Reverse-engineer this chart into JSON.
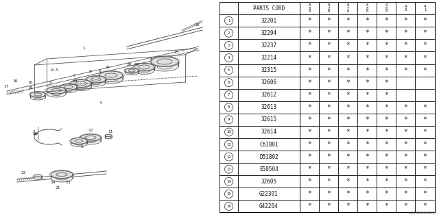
{
  "title": "A114B00095",
  "parts_cord_header": "PARTS CORD",
  "col_headers": [
    "8\n0\n0",
    "8\n2\n0",
    "8\n7\n0",
    "8\n8\n0",
    "9\n0\n0",
    "9\n0",
    "9\n1"
  ],
  "rows": [
    {
      "num": 1,
      "code": "32201",
      "marks": [
        true,
        true,
        true,
        true,
        true,
        true,
        true
      ]
    },
    {
      "num": 2,
      "code": "32294",
      "marks": [
        true,
        true,
        true,
        true,
        true,
        true,
        true
      ]
    },
    {
      "num": 3,
      "code": "32237",
      "marks": [
        true,
        true,
        true,
        true,
        true,
        true,
        true
      ]
    },
    {
      "num": 4,
      "code": "32214",
      "marks": [
        true,
        true,
        true,
        true,
        true,
        true,
        true
      ]
    },
    {
      "num": 5,
      "code": "32315",
      "marks": [
        true,
        true,
        true,
        true,
        true,
        true,
        true
      ]
    },
    {
      "num": 6,
      "code": "32606",
      "marks": [
        true,
        true,
        true,
        true,
        true,
        false,
        false
      ]
    },
    {
      "num": 7,
      "code": "32612",
      "marks": [
        true,
        true,
        true,
        true,
        true,
        false,
        false
      ]
    },
    {
      "num": 8,
      "code": "32613",
      "marks": [
        true,
        true,
        true,
        true,
        true,
        true,
        true
      ]
    },
    {
      "num": 9,
      "code": "32615",
      "marks": [
        true,
        true,
        true,
        true,
        true,
        true,
        true
      ]
    },
    {
      "num": 10,
      "code": "32614",
      "marks": [
        true,
        true,
        true,
        true,
        true,
        true,
        true
      ]
    },
    {
      "num": 11,
      "code": "C61801",
      "marks": [
        true,
        true,
        true,
        true,
        true,
        true,
        true
      ]
    },
    {
      "num": 12,
      "code": "D51802",
      "marks": [
        true,
        true,
        true,
        true,
        true,
        true,
        true
      ]
    },
    {
      "num": 13,
      "code": "E50504",
      "marks": [
        true,
        true,
        true,
        true,
        true,
        true,
        true
      ]
    },
    {
      "num": 14,
      "code": "32605",
      "marks": [
        true,
        true,
        true,
        true,
        true,
        true,
        true
      ]
    },
    {
      "num": 15,
      "code": "G22301",
      "marks": [
        true,
        true,
        true,
        true,
        true,
        true,
        true
      ]
    },
    {
      "num": 16,
      "code": "G42204",
      "marks": [
        true,
        true,
        true,
        true,
        true,
        true,
        true
      ]
    }
  ],
  "bg_color": "#ffffff",
  "table_line_color": "#000000",
  "diagram_color": "#555555"
}
